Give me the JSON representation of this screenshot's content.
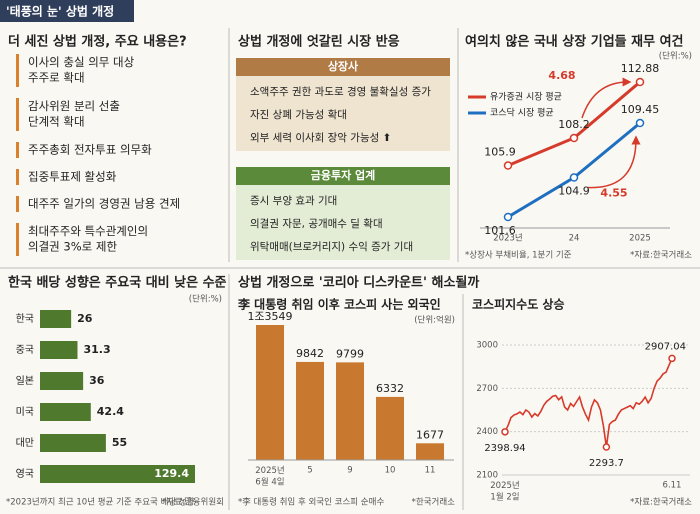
{
  "header": {
    "title": "'태풍의 눈' 상법 개정"
  },
  "panel1": {
    "title": "더 세진 상법 개정, 주요 내용은?",
    "items": [
      "이사의 충실 의무 대상\n주주로 확대",
      "감사위원 분리 선출\n단계적 확대",
      "주주총회 전자투표 의무화",
      "집중투표제 활성화",
      "대주주 일가의 경영권 남용 견제",
      "최대주주와 특수관계인의\n의결권 3%로 제한"
    ]
  },
  "panel2": {
    "title": "상법 개정에 엇갈린 시장 반응",
    "groups": [
      {
        "name": "상장사",
        "items": [
          "소액주주 권한 과도로 경영 불확실성 증가",
          "자진 상폐 가능성 확대",
          "외부 세력 이사회 장악 가능성 ⬆"
        ]
      },
      {
        "name": "금융투자 업계",
        "items": [
          "증시 부양 효과 기대",
          "의결권 자문, 공개매수 딜 확대",
          "위탁매매(브로커리지) 수익 증가 기대"
        ]
      }
    ]
  },
  "section_title": "상법 개정으로 '코리아 디스카운트' 해소될까",
  "chart_data": [
    {
      "type": "line",
      "title": "여의치 않은 국내 상장 기업들 재무 여건",
      "unit": "(단위:%)",
      "categories": [
        "2023년",
        "24",
        "2025"
      ],
      "series": [
        {
          "name": "유가증권 시장 평균",
          "color": "#d63a2a",
          "values": [
            105.9,
            108.2,
            112.88
          ]
        },
        {
          "name": "코스닥 시장 평균",
          "color": "#1e6fc0",
          "values": [
            101.6,
            104.9,
            109.45
          ]
        }
      ],
      "annotations": [
        4.68,
        4.55
      ],
      "notes": [
        "*상장사 부채비율, 1분기 기준",
        "*자료:한국거래소"
      ]
    },
    {
      "type": "hbar",
      "title": "한국 배당 성향은 주요국 대비 낮은 수준",
      "unit": "(단위:%)",
      "categories": [
        "한국",
        "중국",
        "일본",
        "미국",
        "대만",
        "영국"
      ],
      "values": [
        26,
        31.3,
        36,
        42.4,
        55,
        129.4
      ],
      "color": "#4f7a2e",
      "notes": [
        "*2023년까지 최근 10년 평균 기준 주요국 배당 성향",
        "*자료:금융위원회"
      ]
    },
    {
      "type": "bar",
      "title": "李 대통령 취임 이후 코스피 사는 외국인",
      "unit": "(단위:억원)",
      "categories": [
        "2025년\n6월 4일",
        "5",
        "9",
        "10",
        "11"
      ],
      "values": [
        13549,
        9842,
        9799,
        6332,
        1677
      ],
      "value_labels": [
        "1조3549",
        "9842",
        "9799",
        "6332",
        "1677"
      ],
      "color": "#c9792f",
      "notes": [
        "*李 대통령 취임 후 외국인 코스피 순매수",
        "*한국거래소"
      ]
    },
    {
      "type": "line",
      "title": "코스피지수도 상승",
      "color": "#d63a2a",
      "ylim": [
        2100,
        3000
      ],
      "yticks": [
        2100,
        2400,
        2700,
        3000
      ],
      "grid": true,
      "categories": [
        "2025년\n1월 2일",
        null,
        null,
        null,
        null,
        null,
        null,
        null,
        null,
        null,
        null,
        null,
        null,
        null,
        null,
        null,
        null,
        null,
        null,
        null,
        null,
        null,
        null,
        null,
        null,
        null,
        null,
        null,
        null,
        null,
        null,
        null,
        null,
        null,
        null,
        null,
        null,
        null,
        null,
        null,
        null,
        null,
        null,
        null,
        null,
        null,
        null,
        null,
        null,
        null,
        null,
        null,
        null,
        null,
        null,
        null,
        "6.11"
      ],
      "values": [
        2398.94,
        2441,
        2497,
        2515,
        2523,
        2536,
        2518,
        2550,
        2536,
        2501,
        2525,
        2509,
        2540,
        2583,
        2610,
        2626,
        2645,
        2650,
        2621,
        2641,
        2570,
        2550,
        2595,
        2575,
        2608,
        2640,
        2570,
        2520,
        2480,
        2570,
        2620,
        2600,
        2550,
        2440,
        2293.7,
        2450,
        2470,
        2480,
        2520,
        2550,
        2560,
        2570,
        2580,
        2560,
        2600,
        2590,
        2610,
        2640,
        2600,
        2630,
        2700,
        2750,
        2770,
        2800,
        2812,
        2860,
        2907.04
      ],
      "notes": [
        "*자료:한국거래소"
      ]
    }
  ]
}
